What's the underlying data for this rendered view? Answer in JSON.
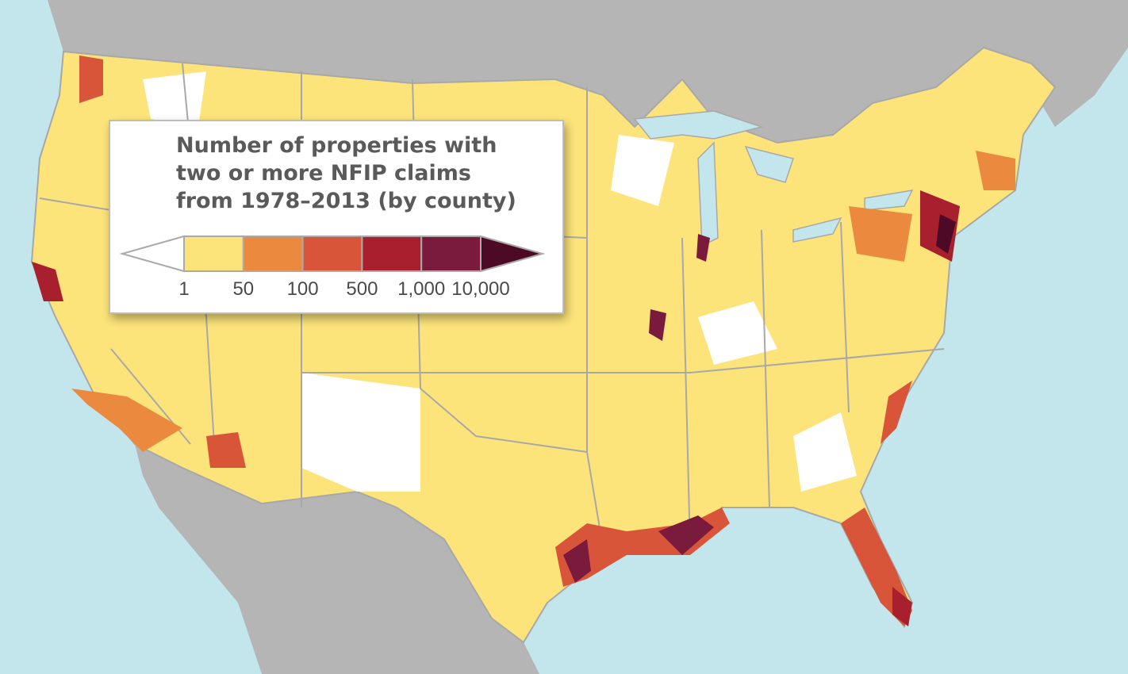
{
  "legend": {
    "title": [
      "Number of properties with",
      "two or more NFIP claims",
      "from 1978–2013 (by county)"
    ],
    "labels": [
      "1",
      "50",
      "100",
      "500",
      "1,000",
      "10,000"
    ],
    "colors": [
      "#ffffff",
      "#fde47a",
      "#eb8a3f",
      "#d9553a",
      "#a8202e",
      "#7a1a3c",
      "#4d0a27"
    ]
  }
}
